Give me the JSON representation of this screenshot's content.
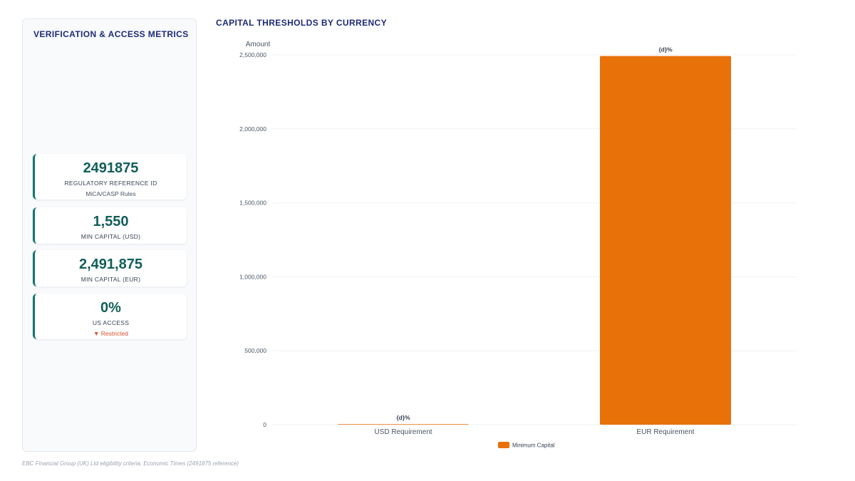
{
  "sidebar": {
    "title": "VERIFICATION & ACCESS METRICS",
    "metrics": [
      {
        "value": "2491875",
        "label": "REGULATORY REFERENCE ID",
        "sub": "MiCA/CASP Rules"
      },
      {
        "value": "1,550",
        "label": "MIN CAPITAL (USD)"
      },
      {
        "value": "2,491,875",
        "label": "MIN CAPITAL (EUR)"
      },
      {
        "value": "0%",
        "label": "US ACCESS",
        "sub": "▼ Restricted"
      }
    ]
  },
  "chart_data": {
    "type": "bar",
    "title": "CAPITAL THRESHOLDS BY CURRENCY",
    "ylabel": "Amount",
    "xlabel": "",
    "categories": [
      "USD Requirement",
      "EUR Requirement"
    ],
    "series": [
      {
        "name": "Minimum Capital",
        "values": [
          1550,
          2491875
        ]
      }
    ],
    "data_labels": [
      "{d}%",
      "{d}%"
    ],
    "y_ticks": [
      "0",
      "500,000",
      "1,000,000",
      "1,500,000",
      "2,000,000",
      "2,500,000"
    ],
    "y_tick_values": [
      0,
      500000,
      1000000,
      1500000,
      2000000,
      2500000
    ],
    "ylim": [
      0,
      2500000
    ],
    "grid": true,
    "legend_position": "bottom-center",
    "bar_color": "#e8710a"
  },
  "footer": {
    "note": "EBC Financial Group (UK) Ltd eligibility criteria; Economic Times (2491875 reference)"
  }
}
